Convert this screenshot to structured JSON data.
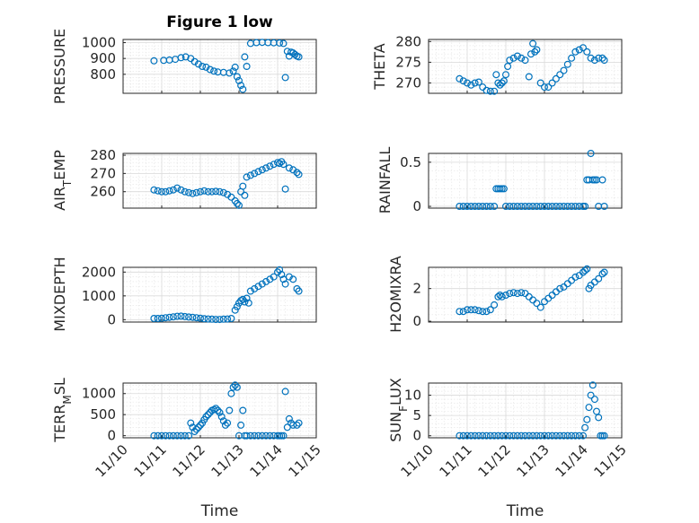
{
  "figure": {
    "marker_color": "#0072BD",
    "xlabel": "Time",
    "x_tick_labels": [
      "11/10",
      "11/11",
      "11/12",
      "11/13",
      "11/14",
      "11/15"
    ]
  },
  "chart_data": [
    {
      "type": "scatter",
      "id": "pressure",
      "title": "Figure 1 low",
      "ylabel": "PRESSURE",
      "xlim": [
        0,
        5
      ],
      "ylim": [
        680,
        1020
      ],
      "yticks": [
        800,
        900,
        1000
      ],
      "grid": true,
      "x": [
        0.8,
        1.05,
        1.2,
        1.35,
        1.5,
        1.62,
        1.75,
        1.85,
        1.95,
        2.05,
        2.15,
        2.25,
        2.35,
        2.45,
        2.6,
        2.75,
        2.85,
        2.9,
        2.95,
        3.0,
        3.05,
        3.1,
        3.15,
        3.2,
        3.3,
        3.45,
        3.6,
        3.75,
        3.9,
        4.05,
        4.15,
        4.2,
        4.25,
        4.3,
        4.35,
        4.4,
        4.45,
        4.5,
        4.55
      ],
      "y": [
        885,
        888,
        890,
        895,
        905,
        910,
        900,
        880,
        865,
        850,
        845,
        830,
        820,
        815,
        812,
        808,
        820,
        845,
        785,
        760,
        730,
        705,
        910,
        850,
        995,
        1000,
        1002,
        1000,
        999,
        998,
        995,
        780,
        945,
        915,
        940,
        935,
        925,
        915,
        910
      ]
    },
    {
      "type": "scatter",
      "id": "theta",
      "title": "",
      "ylabel": "THETA",
      "xlim": [
        0,
        5
      ],
      "ylim": [
        267.5,
        280.5
      ],
      "yticks": [
        270,
        275,
        280
      ],
      "grid": true,
      "x": [
        0.8,
        0.9,
        1.0,
        1.1,
        1.2,
        1.3,
        1.4,
        1.5,
        1.6,
        1.7,
        1.75,
        1.8,
        1.85,
        1.9,
        1.95,
        2.0,
        2.05,
        2.1,
        2.2,
        2.3,
        2.4,
        2.5,
        2.6,
        2.65,
        2.7,
        2.75,
        2.8,
        2.9,
        3.0,
        3.1,
        3.2,
        3.3,
        3.4,
        3.5,
        3.6,
        3.7,
        3.8,
        3.9,
        4.0,
        4.1,
        4.2,
        4.3,
        4.4,
        4.5,
        4.55
      ],
      "y": [
        271,
        270.5,
        270,
        269.5,
        270,
        270.2,
        269,
        268.2,
        268,
        268,
        272,
        270,
        269.5,
        270,
        270.5,
        272,
        274,
        275.5,
        276,
        276.5,
        276,
        275.5,
        271.5,
        277,
        279.5,
        277.5,
        278,
        270,
        269,
        269,
        270,
        271,
        272,
        273,
        274.5,
        276,
        277.5,
        278,
        278.5,
        277.5,
        276,
        275.5,
        276,
        276,
        275.5
      ]
    },
    {
      "type": "scatter",
      "id": "air_temp",
      "title": "",
      "ylabel": "AIR_T EMP",
      "xlim": [
        0,
        5
      ],
      "ylim": [
        251,
        281
      ],
      "yticks": [
        260,
        270,
        280
      ],
      "grid": true,
      "x": [
        0.8,
        0.9,
        1.0,
        1.1,
        1.2,
        1.3,
        1.4,
        1.5,
        1.6,
        1.7,
        1.8,
        1.9,
        2.0,
        2.1,
        2.2,
        2.3,
        2.4,
        2.5,
        2.6,
        2.7,
        2.8,
        2.9,
        2.95,
        3.0,
        3.05,
        3.1,
        3.15,
        3.2,
        3.3,
        3.4,
        3.5,
        3.6,
        3.7,
        3.8,
        3.9,
        4.0,
        4.05,
        4.1,
        4.15,
        4.2,
        4.3,
        4.4,
        4.5,
        4.55
      ],
      "y": [
        261,
        260.5,
        260,
        260,
        260.5,
        261,
        262,
        261,
        260,
        259.5,
        259,
        259.5,
        260,
        260.5,
        260,
        260,
        260.2,
        260,
        259.5,
        258.5,
        257,
        255,
        253.5,
        252.5,
        260,
        263,
        258,
        268,
        269,
        270,
        271,
        272,
        273,
        274,
        275,
        276,
        275.5,
        276.5,
        275,
        261.5,
        273,
        272,
        270.5,
        269.5
      ]
    },
    {
      "type": "scatter",
      "id": "rainfall",
      "title": "",
      "ylabel": "RAINFALL",
      "xlim": [
        0,
        5
      ],
      "ylim": [
        -0.02,
        0.6
      ],
      "yticks": [
        0,
        0.5
      ],
      "grid": true,
      "x": [
        0.8,
        0.9,
        1.0,
        1.1,
        1.2,
        1.3,
        1.4,
        1.5,
        1.6,
        1.7,
        1.75,
        1.8,
        1.85,
        1.9,
        1.95,
        2.0,
        2.1,
        2.2,
        2.3,
        2.4,
        2.5,
        2.6,
        2.7,
        2.8,
        2.9,
        3.0,
        3.1,
        3.2,
        3.3,
        3.4,
        3.5,
        3.6,
        3.7,
        3.8,
        3.9,
        4.0,
        4.05,
        4.1,
        4.15,
        4.2,
        4.25,
        4.3,
        4.35,
        4.4,
        4.5,
        4.55
      ],
      "y": [
        0,
        0,
        0,
        0,
        0,
        0,
        0,
        0,
        0,
        0,
        0.2,
        0.2,
        0.2,
        0.2,
        0.2,
        0,
        0,
        0,
        0,
        0,
        0,
        0,
        0,
        0,
        0,
        0,
        0,
        0,
        0,
        0,
        0,
        0,
        0,
        0,
        0,
        0,
        0,
        0.3,
        0.3,
        0.6,
        0.3,
        0.3,
        0.3,
        0,
        0.3,
        0
      ]
    },
    {
      "type": "scatter",
      "id": "mixdepth",
      "title": "",
      "ylabel": "MIXDEPTH",
      "xlim": [
        0,
        5
      ],
      "ylim": [
        -100,
        2200
      ],
      "yticks": [
        0,
        1000,
        2000
      ],
      "grid": true,
      "x": [
        0.8,
        0.9,
        1.0,
        1.1,
        1.2,
        1.3,
        1.4,
        1.5,
        1.6,
        1.7,
        1.8,
        1.9,
        2.0,
        2.1,
        2.2,
        2.3,
        2.4,
        2.5,
        2.6,
        2.7,
        2.8,
        2.9,
        2.95,
        3.0,
        3.05,
        3.1,
        3.15,
        3.2,
        3.25,
        3.3,
        3.4,
        3.5,
        3.6,
        3.7,
        3.8,
        3.9,
        4.0,
        4.05,
        4.1,
        4.15,
        4.2,
        4.3,
        4.4,
        4.5,
        4.55
      ],
      "y": [
        50,
        50,
        60,
        80,
        100,
        120,
        140,
        150,
        130,
        110,
        100,
        80,
        60,
        40,
        30,
        20,
        10,
        10,
        20,
        30,
        50,
        400,
        550,
        700,
        800,
        850,
        750,
        900,
        700,
        1200,
        1300,
        1400,
        1500,
        1600,
        1700,
        1800,
        2000,
        2100,
        1900,
        1700,
        1500,
        1800,
        1700,
        1300,
        1200
      ]
    },
    {
      "type": "scatter",
      "id": "h2omixra",
      "title": "",
      "ylabel": "H2OMIXRA",
      "xlim": [
        0,
        5
      ],
      "ylim": [
        -0.05,
        3.3
      ],
      "yticks": [
        0,
        2
      ],
      "grid": true,
      "x": [
        0.8,
        0.9,
        1.0,
        1.1,
        1.2,
        1.3,
        1.4,
        1.5,
        1.6,
        1.7,
        1.8,
        1.85,
        1.9,
        2.0,
        2.1,
        2.2,
        2.3,
        2.4,
        2.5,
        2.6,
        2.7,
        2.8,
        2.9,
        3.0,
        3.1,
        3.2,
        3.3,
        3.4,
        3.5,
        3.6,
        3.7,
        3.8,
        3.9,
        4.0,
        4.05,
        4.1,
        4.15,
        4.2,
        4.3,
        4.4,
        4.5,
        4.55
      ],
      "y": [
        0.6,
        0.6,
        0.7,
        0.7,
        0.7,
        0.65,
        0.6,
        0.6,
        0.7,
        1.0,
        1.5,
        1.6,
        1.5,
        1.6,
        1.7,
        1.75,
        1.7,
        1.75,
        1.7,
        1.5,
        1.3,
        1.1,
        0.85,
        1.2,
        1.4,
        1.6,
        1.8,
        2.0,
        2.1,
        2.3,
        2.5,
        2.7,
        2.8,
        3.0,
        3.1,
        3.2,
        2.0,
        2.2,
        2.4,
        2.6,
        2.9,
        3.0
      ]
    },
    {
      "type": "scatter",
      "id": "terr_msl",
      "title": "",
      "ylabel": "TERR_M SL",
      "xlim": [
        0,
        5
      ],
      "ylim": [
        -50,
        1250
      ],
      "yticks": [
        0,
        500,
        1000
      ],
      "grid": true,
      "x": [
        0.8,
        0.9,
        1.0,
        1.1,
        1.2,
        1.3,
        1.4,
        1.5,
        1.6,
        1.7,
        1.75,
        1.8,
        1.85,
        1.9,
        1.95,
        2.0,
        2.05,
        2.1,
        2.15,
        2.2,
        2.25,
        2.3,
        2.35,
        2.4,
        2.45,
        2.5,
        2.55,
        2.6,
        2.65,
        2.7,
        2.75,
        2.8,
        2.85,
        2.9,
        2.95,
        3.0,
        3.05,
        3.1,
        3.15,
        3.2,
        3.3,
        3.4,
        3.5,
        3.6,
        3.7,
        3.8,
        3.9,
        4.0,
        4.05,
        4.1,
        4.15,
        4.2,
        4.25,
        4.3,
        4.35,
        4.4,
        4.5,
        4.55
      ],
      "y": [
        0,
        0,
        0,
        0,
        0,
        0,
        0,
        0,
        0,
        0,
        300,
        200,
        100,
        150,
        200,
        250,
        300,
        380,
        450,
        500,
        550,
        600,
        620,
        650,
        600,
        550,
        450,
        350,
        250,
        300,
        600,
        1000,
        1150,
        1200,
        1150,
        0,
        250,
        600,
        0,
        0,
        0,
        0,
        0,
        0,
        0,
        0,
        0,
        0,
        0,
        0,
        0,
        1050,
        200,
        400,
        300,
        250,
        250,
        300
      ]
    },
    {
      "type": "scatter",
      "id": "sun_flux",
      "title": "",
      "ylabel": "SUN_F LUX",
      "xlim": [
        0,
        5
      ],
      "ylim": [
        -0.5,
        13
      ],
      "yticks": [
        0,
        5,
        10
      ],
      "grid": true,
      "x": [
        0.8,
        0.9,
        1.0,
        1.1,
        1.2,
        1.3,
        1.4,
        1.5,
        1.6,
        1.7,
        1.8,
        1.9,
        2.0,
        2.1,
        2.2,
        2.3,
        2.4,
        2.5,
        2.6,
        2.7,
        2.8,
        2.9,
        3.0,
        3.1,
        3.2,
        3.3,
        3.4,
        3.5,
        3.6,
        3.7,
        3.8,
        3.9,
        4.0,
        4.05,
        4.1,
        4.15,
        4.2,
        4.25,
        4.3,
        4.35,
        4.4,
        4.45,
        4.5,
        4.55
      ],
      "y": [
        0,
        0,
        0,
        0,
        0,
        0,
        0,
        0,
        0,
        0,
        0,
        0,
        0,
        0,
        0,
        0,
        0,
        0,
        0,
        0,
        0,
        0,
        0,
        0,
        0,
        0,
        0,
        0,
        0,
        0,
        0,
        0,
        0,
        2,
        4,
        7,
        10,
        12.5,
        9,
        6,
        4.5,
        0,
        0,
        0
      ]
    }
  ]
}
